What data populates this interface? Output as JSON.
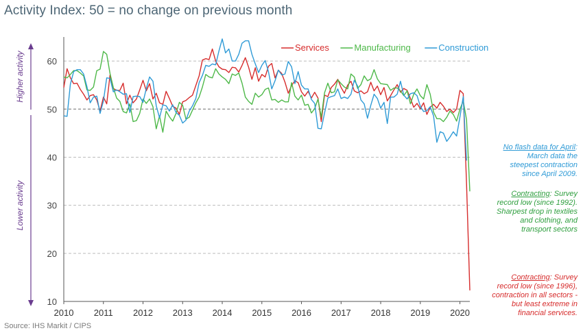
{
  "page": {
    "title": "Activity Index:  50 = no change on previous month",
    "source": "Source: IHS Markit / CIPS"
  },
  "side_labels": {
    "higher": "Higher activity",
    "lower": "Lower activity"
  },
  "notes": {
    "construction": {
      "lead": "No flash data for April",
      "lines": [
        ": ",
        "March data the",
        "steepest contraction",
        "since April 2009."
      ]
    },
    "manufacturing": {
      "lead": "Contracting",
      "lines": [
        ": Survey",
        "record low (since 1992).",
        "Sharpest drop in textiles",
        "and clothing, and",
        "transport sectors"
      ]
    },
    "services": {
      "lead": "Contracting",
      "lines": [
        ":  Survey",
        "record low (since 1996),",
        "contraction in all sectors -",
        "but least extreme in",
        "financial services."
      ]
    }
  },
  "colors": {
    "services": "#d62b2b",
    "manufacturing": "#4db848",
    "construction": "#2e9ad6",
    "axis": "#4d6675",
    "grid": "#bbbbbb",
    "arrow": "#6a3d8f"
  },
  "chart_data": {
    "type": "line",
    "title": "Activity Index:  50 = no change on previous month",
    "xlabel": "",
    "ylabel": "",
    "x_start": "2010-01",
    "x_end": "2020-04",
    "x_tick_labels": [
      "2010",
      "2011",
      "2012",
      "2013",
      "2014",
      "2015",
      "2016",
      "2017",
      "2018",
      "2019",
      "2020"
    ],
    "y_ticks": [
      10,
      20,
      30,
      40,
      50,
      60
    ],
    "ylim": [
      10,
      65
    ],
    "grid": "horizontal dashed",
    "legend_position": "top-right",
    "series": [
      {
        "name": "Services",
        "color": "#d62b2b",
        "start": "2010-01",
        "values": [
          54.5,
          58.4,
          56.5,
          55.3,
          55.4,
          54.1,
          53.1,
          51.9,
          52.8,
          53.0,
          51.9,
          49.6,
          52.5,
          51.1,
          57.1,
          54.3,
          53.9,
          53.9,
          55.4,
          51.1,
          52.9,
          51.3,
          52.1,
          54.0,
          56.0,
          53.8,
          55.3,
          52.1,
          53.3,
          51.3,
          51.0,
          53.7,
          52.2,
          50.6,
          50.2,
          48.9,
          51.5,
          51.8,
          52.4,
          52.9,
          54.9,
          56.9,
          60.2,
          60.5,
          60.3,
          62.5,
          60.0,
          58.8,
          58.3,
          58.2,
          57.6,
          58.7,
          58.6,
          57.7,
          59.1,
          60.7,
          58.7,
          56.2,
          58.6,
          55.8,
          57.2,
          56.7,
          58.9,
          59.5,
          56.5,
          58.1,
          57.4,
          55.6,
          53.3,
          54.9,
          55.9,
          55.5,
          53.6,
          52.7,
          53.7,
          52.3,
          53.5,
          52.3,
          47.4,
          52.9,
          52.6,
          54.5,
          55.2,
          56.2,
          54.5,
          53.3,
          55.0,
          55.8,
          53.8,
          53.4,
          53.8,
          53.2,
          53.6,
          55.6,
          53.8,
          54.8,
          53.0,
          54.5,
          51.7,
          52.8,
          54.0,
          55.1,
          53.5,
          54.3,
          53.9,
          52.2,
          50.4,
          51.2,
          50.1,
          51.3,
          48.9,
          50.4,
          51.0,
          50.2,
          51.4,
          50.6,
          49.5,
          50.0,
          49.3,
          50.0,
          53.9,
          53.2,
          34.5,
          12.3
        ]
      },
      {
        "name": "Manufacturing",
        "color": "#4db848",
        "start": "2010-01",
        "values": [
          56.7,
          56.5,
          57.2,
          58.0,
          58.0,
          57.5,
          56.9,
          54.0,
          53.9,
          54.6,
          58.0,
          58.3,
          62.0,
          61.4,
          57.4,
          54.5,
          52.3,
          51.6,
          49.5,
          49.2,
          51.1,
          47.4,
          47.6,
          49.1,
          52.1,
          51.2,
          52.1,
          50.5,
          45.9,
          48.6,
          45.2,
          49.6,
          48.4,
          47.5,
          49.1,
          51.4,
          50.8,
          47.9,
          48.3,
          49.8,
          51.3,
          52.5,
          54.6,
          57.2,
          56.7,
          56.5,
          58.4,
          57.3,
          56.7,
          56.2,
          55.3,
          57.3,
          57.0,
          57.5,
          55.4,
          52.5,
          51.6,
          51.0,
          53.3,
          52.5,
          53.0,
          54.1,
          54.4,
          51.9,
          52.0,
          51.4,
          51.9,
          51.5,
          51.5,
          55.5,
          52.7,
          51.9,
          52.9,
          50.8,
          51.0,
          49.2,
          50.1,
          52.1,
          48.3,
          53.4,
          55.4,
          53.4,
          53.6,
          56.1,
          55.3,
          54.6,
          54.2,
          57.3,
          56.7,
          54.3,
          55.1,
          56.9,
          55.9,
          56.3,
          58.2,
          56.3,
          55.3,
          55.2,
          55.1,
          53.9,
          54.4,
          54.4,
          53.8,
          52.8,
          53.8,
          51.1,
          53.1,
          54.2,
          52.8,
          52.1,
          55.1,
          53.1,
          49.4,
          48.0,
          48.0,
          47.4,
          48.3,
          49.6,
          48.9,
          47.5,
          50.0,
          51.7,
          47.8,
          32.9
        ]
      },
      {
        "name": "Construction",
        "color": "#2e9ad6",
        "start": "2010-01",
        "values": [
          48.6,
          48.5,
          55.2,
          57.8,
          58.2,
          58.2,
          57.3,
          54.7,
          51.3,
          52.5,
          52.7,
          49.1,
          51.7,
          56.5,
          56.4,
          53.6,
          54.0,
          53.6,
          53.1,
          53.2,
          49.3,
          52.6,
          52.7,
          52.6,
          51.4,
          54.3,
          56.7,
          55.8,
          50.7,
          48.2,
          50.9,
          50.7,
          49.6,
          50.9,
          49.3,
          48.7,
          47.1,
          47.7,
          49.6,
          50.7,
          52.2,
          55.5,
          57.0,
          59.1,
          58.9,
          59.4,
          59.2,
          62.1,
          64.6,
          61.7,
          62.5,
          60.0,
          60.0,
          61.4,
          63.7,
          64.2,
          64.2,
          61.4,
          59.4,
          57.6,
          59.1,
          60.1,
          57.8,
          54.2,
          55.9,
          58.1,
          57.1,
          57.3,
          59.9,
          58.8,
          55.3,
          57.8,
          55.0,
          54.2,
          54.2,
          52.0,
          51.2,
          46.0,
          45.9,
          49.2,
          52.3,
          52.6,
          52.8,
          54.2,
          52.2,
          52.5,
          52.2,
          53.1,
          56.0,
          54.8,
          51.9,
          51.1,
          48.1,
          50.8,
          53.1,
          52.2,
          50.2,
          51.4,
          47.0,
          52.5,
          52.5,
          53.1,
          55.8,
          52.9,
          52.1,
          53.2,
          53.4,
          52.8,
          50.6,
          49.5,
          49.7,
          50.5,
          48.6,
          43.1,
          45.3,
          45.0,
          43.3,
          44.2,
          45.3,
          44.4,
          48.4,
          52.6,
          39.3
        ]
      }
    ]
  }
}
